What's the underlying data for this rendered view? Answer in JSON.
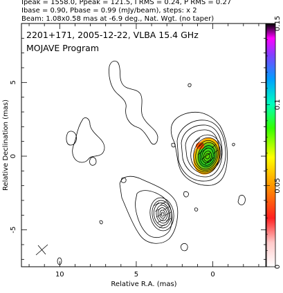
{
  "header": {
    "line1": "Ipeak = 1558.0, Ppeak = 121.5, I RMS = 0.24, P RMS = 0.27",
    "line2": "Ibase = 0.90, Pbase = 0.99 (mJy/beam), steps: x 2",
    "line3": "Beam: 1.08x0.58 mas at -6.9 deg., Nat. Wgt. (no taper)"
  },
  "plot": {
    "title_line1": "2201+171, 2005-12-22, VLBA 15.4 GHz",
    "title_line2": "MOJAVE Program",
    "xlabel": "Relative R.A. (mas)",
    "ylabel": "Relative Declination (mas)"
  },
  "colorbar": {
    "tick_labels": [
      "0",
      "0.05",
      "0.1",
      "0.15"
    ]
  },
  "chart_data": {
    "type": "contour",
    "title": "2201+171, 2005-12-22, VLBA 15.4 GHz",
    "subtitle": "MOJAVE Program",
    "xlabel": "Relative R.A. (mas)",
    "ylabel": "Relative Declination (mas)",
    "xlim": [
      12.5,
      -3.5
    ],
    "ylim": [
      -7.5,
      9
    ],
    "x_ticks": [
      10,
      5,
      0
    ],
    "y_ticks": [
      5,
      0,
      -5
    ],
    "colorbar_range": [
      0,
      0.15
    ],
    "colorbar_ticks": [
      0,
      0.05,
      0.1,
      0.15
    ],
    "peaks": [
      {
        "x": 0.1,
        "y": 0.0,
        "contour_levels": 11,
        "has_polarization_color": true
      },
      {
        "x": 3.1,
        "y": -3.8,
        "contour_levels": 8,
        "has_polarization_color": false
      }
    ],
    "beam": {
      "major_mas": 1.08,
      "minor_mas": 0.58,
      "pa_deg": -6.9
    }
  }
}
